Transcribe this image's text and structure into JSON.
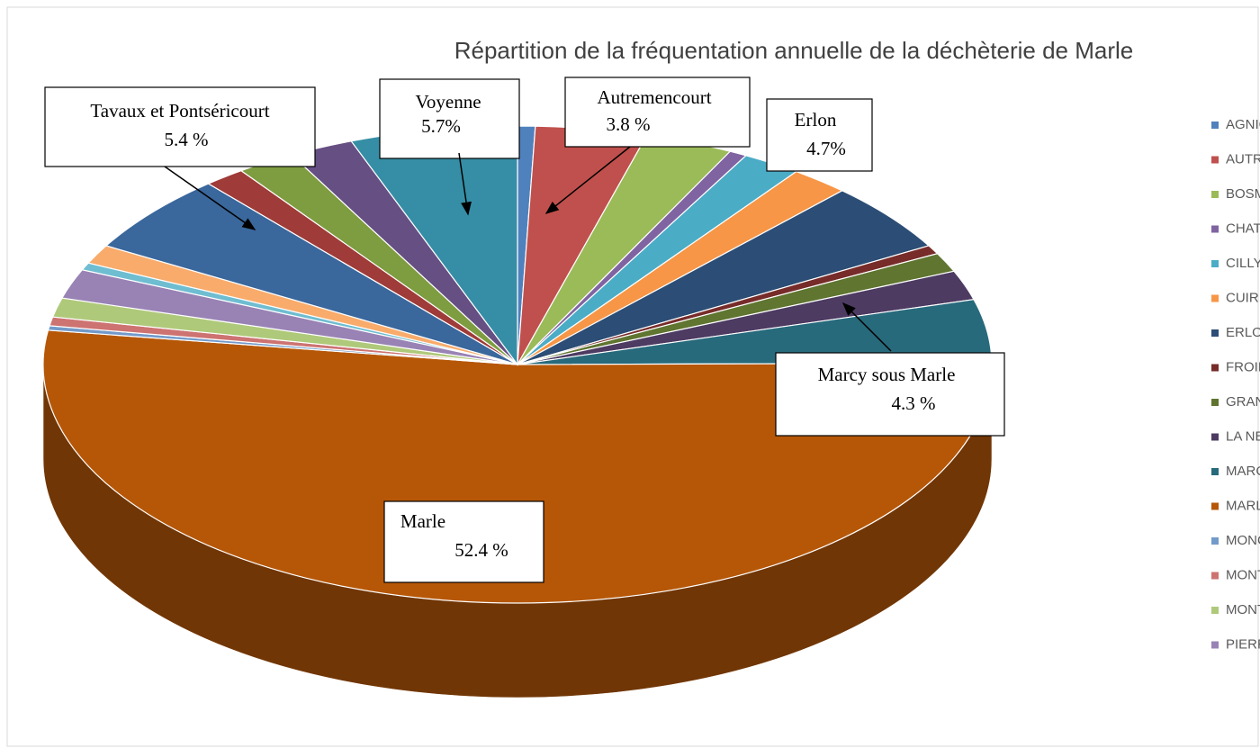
{
  "chart_data": {
    "type": "pie3d",
    "title": "Répartition de la fréquentation annuelle de la déchèterie de Marle",
    "categories": [
      "AGNICOURT ET SECH",
      "AUTREMENCOURT",
      "BOSMONT SUR SERRE",
      "CHATILLON LES SONS",
      "CILLY",
      "CUIRIEUX",
      "ERLON",
      "FROIDMONT COHART",
      "GRANDLUP ET FAY",
      "LA NEUVILLE BOSMON",
      "MARCY SOUS MARLE",
      "MARLE",
      "MONCEAU LE WAAST",
      "MONTIGNY LE FRANC",
      "MONTIGNY S/ MARLE",
      "PIERREPONT",
      null,
      null,
      null,
      null,
      null,
      null,
      null
    ],
    "values": [
      0.6,
      3.8,
      3.0,
      0.6,
      2.0,
      2.0,
      4.7,
      0.6,
      1.3,
      2.0,
      4.3,
      52.4,
      0.3,
      0.6,
      1.3,
      2.0,
      0.5,
      1.3,
      5.4,
      1.4,
      2.0,
      2.2,
      5.7
    ],
    "slice_labels": [
      null,
      "Autremencourt",
      null,
      null,
      null,
      null,
      "Erlon",
      null,
      null,
      null,
      "Marcy sous Marle",
      "Marle",
      null,
      null,
      null,
      null,
      null,
      null,
      "Tavaux et Pontséricourt",
      null,
      null,
      null,
      "Voyenne"
    ],
    "value_labels": [
      null,
      "3.8 %",
      null,
      null,
      null,
      null,
      "4.7%",
      null,
      null,
      null,
      "4.3 %",
      "52.4 %",
      null,
      null,
      null,
      null,
      null,
      null,
      "5.4 %",
      null,
      null,
      null,
      "5.7%"
    ],
    "colors": [
      "#4F81BD",
      "#C0504D",
      "#9BBB59",
      "#8064A2",
      "#4BACC6",
      "#F79646",
      "#2C4D75",
      "#772C2A",
      "#5F7530",
      "#4D3B62",
      "#276A7C",
      "#B65708",
      "#729ACA",
      "#CD7371",
      "#AFC97A",
      "#9983B5",
      "#6FBDD1",
      "#F9AB6B",
      "#3A679C",
      "#9F3B38",
      "#7E9C40",
      "#664F83",
      "#358EA5"
    ],
    "legend": "right"
  }
}
